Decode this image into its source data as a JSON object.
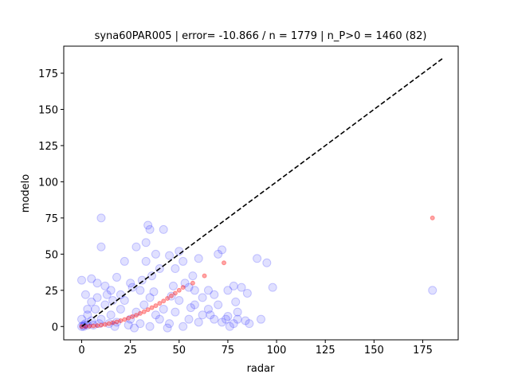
{
  "chart_data": {
    "type": "scatter",
    "title": "syna60PAR005 | error= -10.866 / n = 1779 | n_P>0 = 1460 (82)",
    "x_label": "radar",
    "y_label": "modelo",
    "xlim": [
      -9.2,
      193.2
    ],
    "ylim": [
      -9.2,
      193.7
    ],
    "xticks": [
      0,
      25,
      50,
      75,
      100,
      125,
      150,
      175
    ],
    "yticks": [
      0,
      25,
      50,
      75,
      100,
      125,
      150,
      175
    ],
    "reference_line": {
      "x": [
        0,
        185
      ],
      "y": [
        0,
        185
      ],
      "color": "#000000"
    },
    "series": [
      {
        "color": "#0000ff",
        "x": [
          10,
          10,
          0,
          2,
          5,
          8,
          12,
          15,
          18,
          20,
          22,
          25,
          28,
          30,
          33,
          33,
          34,
          35,
          38,
          40,
          42,
          45,
          48,
          50,
          52,
          55,
          58,
          60,
          62,
          65,
          68,
          70,
          72,
          75,
          78,
          80,
          82,
          85,
          90,
          95,
          98,
          180,
          0,
          2,
          3,
          5,
          7,
          10,
          12,
          15,
          18,
          20,
          22,
          25,
          28,
          30,
          32,
          35,
          38,
          40,
          42,
          45,
          48,
          50,
          52,
          55,
          58,
          60,
          62,
          65,
          68,
          70,
          72,
          75,
          78,
          80,
          1,
          1,
          0,
          3,
          6,
          9,
          14,
          17,
          24,
          27,
          35,
          44,
          5,
          3,
          8,
          13,
          16,
          26,
          31,
          36,
          37,
          47,
          53,
          57,
          56,
          46,
          66,
          74,
          79,
          84,
          92,
          76,
          86
        ],
        "y": [
          75,
          55,
          32,
          22,
          33,
          30,
          28,
          25,
          34,
          22,
          45,
          30,
          55,
          25,
          45,
          58,
          70,
          67,
          50,
          40,
          67,
          49,
          40,
          52,
          45,
          27,
          25,
          47,
          20,
          25,
          22,
          50,
          53,
          25,
          28,
          10,
          27,
          23,
          47,
          44,
          27,
          25,
          0,
          2,
          8,
          4,
          12,
          5,
          15,
          8,
          3,
          12,
          18,
          5,
          10,
          2,
          15,
          20,
          8,
          5,
          12,
          2,
          10,
          18,
          0,
          5,
          15,
          3,
          8,
          12,
          5,
          15,
          3,
          7,
          2,
          5,
          0,
          1,
          5,
          1,
          1,
          2,
          2,
          0,
          1,
          -1,
          0,
          -1,
          17,
          12,
          20,
          22,
          18,
          27,
          32,
          35,
          24,
          28,
          30,
          35,
          13,
          21,
          8,
          5,
          17,
          4,
          5,
          0,
          2
        ]
      },
      {
        "color": "#ff0000",
        "x": [
          0,
          2,
          4,
          6,
          8,
          10,
          12,
          14,
          16,
          18,
          20,
          22,
          24,
          26,
          28,
          30,
          32,
          34,
          36,
          38,
          40,
          42,
          44,
          46,
          48,
          50,
          52,
          57,
          63,
          73,
          180
        ],
        "y": [
          0,
          0,
          0.2,
          0.4,
          0.6,
          1,
          1.4,
          2,
          2.6,
          3.2,
          4,
          4.8,
          5.8,
          6.8,
          7.8,
          9,
          10.2,
          11.6,
          13,
          14.4,
          16,
          17.6,
          19.4,
          21.2,
          23,
          25,
          27,
          30,
          35,
          44,
          75
        ]
      }
    ]
  }
}
